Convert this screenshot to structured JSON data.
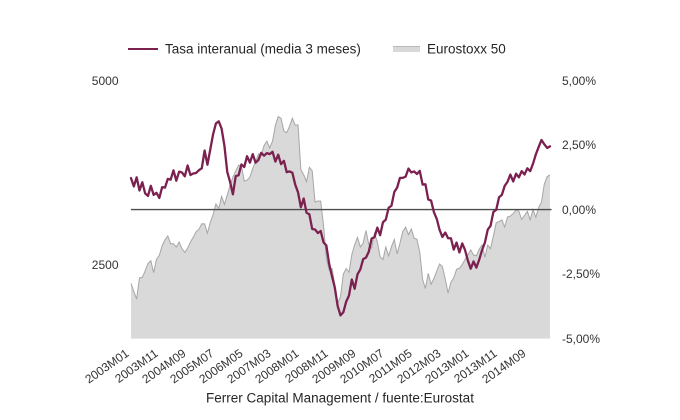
{
  "chart_data": {
    "type": "combo",
    "x": [
      "2003M01",
      "2003M02",
      "2003M03",
      "2003M04",
      "2003M05",
      "2003M06",
      "2003M07",
      "2003M08",
      "2003M09",
      "2003M10",
      "2003M11",
      "2003M12",
      "2004M01",
      "2004M02",
      "2004M03",
      "2004M04",
      "2004M05",
      "2004M06",
      "2004M07",
      "2004M08",
      "2004M09",
      "2004M10",
      "2004M11",
      "2004M12",
      "2005M01",
      "2005M02",
      "2005M03",
      "2005M04",
      "2005M05",
      "2005M06",
      "2005M07",
      "2005M08",
      "2005M09",
      "2005M10",
      "2005M11",
      "2005M12",
      "2006M01",
      "2006M02",
      "2006M03",
      "2006M04",
      "2006M05",
      "2006M06",
      "2006M07",
      "2006M08",
      "2006M09",
      "2006M10",
      "2006M11",
      "2006M12",
      "2007M01",
      "2007M02",
      "2007M03",
      "2007M04",
      "2007M05",
      "2007M06",
      "2007M07",
      "2007M08",
      "2007M09",
      "2007M10",
      "2007M11",
      "2007M12",
      "2008M01",
      "2008M02",
      "2008M03",
      "2008M04",
      "2008M05",
      "2008M06",
      "2008M07",
      "2008M08",
      "2008M09",
      "2008M10",
      "2008M11",
      "2008M12",
      "2009M01",
      "2009M02",
      "2009M03",
      "2009M04",
      "2009M05",
      "2009M06",
      "2009M07",
      "2009M08",
      "2009M09",
      "2009M10",
      "2009M11",
      "2009M12",
      "2010M01",
      "2010M02",
      "2010M03",
      "2010M04",
      "2010M05",
      "2010M06",
      "2010M07",
      "2010M08",
      "2010M09",
      "2010M10",
      "2010M11",
      "2010M12",
      "2011M01",
      "2011M02",
      "2011M03",
      "2011M04",
      "2011M05",
      "2011M06",
      "2011M07",
      "2011M08",
      "2011M09",
      "2011M10",
      "2011M11",
      "2011M12",
      "2012M01",
      "2012M02",
      "2012M03",
      "2012M04",
      "2012M05",
      "2012M06",
      "2012M07",
      "2012M08",
      "2012M09",
      "2012M10",
      "2012M11",
      "2012M12",
      "2013M01",
      "2013M02",
      "2013M03",
      "2013M04",
      "2013M05",
      "2013M06",
      "2013M07",
      "2013M08",
      "2013M09",
      "2013M10",
      "2013M11",
      "2013M12",
      "2014M01",
      "2014M02",
      "2014M03",
      "2014M04",
      "2014M05",
      "2014M06",
      "2014M07",
      "2014M08",
      "2014M09",
      "2014M10",
      "2014M11",
      "2014M12",
      "2015M01",
      "2015M02",
      "2015M03",
      "2015M04",
      "2015M05"
    ],
    "x_tick_labels": [
      "2003M01",
      "2003M11",
      "2004M09",
      "2005M07",
      "2006M05",
      "2007M03",
      "2008M01",
      "2008M11",
      "2009M09",
      "2010M07",
      "2011M05",
      "2012M03",
      "2013M01",
      "2013M11",
      "2014M09"
    ],
    "x_tick_indices": [
      0,
      10,
      20,
      30,
      40,
      50,
      60,
      70,
      80,
      90,
      100,
      110,
      120,
      130,
      140
    ],
    "series": [
      {
        "name": "Tasa interanual (media 3 meses)",
        "type": "line",
        "axis": "right",
        "color": "#7b2150",
        "values": [
          1.22,
          0.9,
          1.25,
          0.74,
          1.06,
          0.63,
          0.53,
          0.92,
          0.57,
          0.65,
          0.45,
          0.87,
          0.85,
          1.19,
          1.16,
          1.52,
          1.12,
          1.47,
          1.44,
          1.29,
          1.71,
          1.34,
          1.4,
          1.42,
          1.53,
          1.6,
          2.29,
          1.74,
          2.33,
          2.92,
          3.34,
          3.42,
          3.14,
          2.47,
          1.46,
          1.07,
          0.59,
          1.3,
          1.33,
          1.75,
          1.65,
          2.07,
          1.82,
          2.15,
          1.82,
          1.92,
          2.2,
          2.09,
          2.19,
          2.15,
          2.24,
          1.86,
          2.13,
          1.76,
          1.89,
          1.45,
          1.48,
          1.43,
          0.97,
          0.67,
          0.09,
          0.43,
          -0.12,
          -0.18,
          -0.75,
          -0.77,
          -0.91,
          -0.83,
          -1.27,
          -1.39,
          -2.11,
          -2.59,
          -3.03,
          -3.74,
          -4.1,
          -3.98,
          -3.57,
          -3.33,
          -2.71,
          -3.07,
          -2.51,
          -2.32,
          -1.92,
          -1.86,
          -1.63,
          -1.12,
          -1.07,
          -0.7,
          -0.99,
          -0.49,
          -0.39,
          0.07,
          0.15,
          0.68,
          0.85,
          1.23,
          1.23,
          1.28,
          1.59,
          1.44,
          1.48,
          1.38,
          1.5,
          0.97,
          0.98,
          0.39,
          0.35,
          -0.1,
          -0.36,
          -0.79,
          -1.06,
          -0.89,
          -1.11,
          -1.11,
          -1.55,
          -1.28,
          -1.66,
          -1.31,
          -1.57,
          -1.98,
          -2.29,
          -2.01,
          -2.25,
          -1.94,
          -1.57,
          -1.28,
          -0.78,
          -0.63,
          -0.09,
          -0.01,
          0.48,
          0.57,
          0.92,
          1.08,
          1.36,
          1.09,
          1.39,
          1.25,
          1.49,
          1.36,
          1.6,
          1.49,
          1.78,
          2.14,
          2.43,
          2.7,
          2.53,
          2.39,
          2.45
        ]
      },
      {
        "name": "Eurostoxx 50",
        "type": "area",
        "axis": "left",
        "fill": "#d9d9d9",
        "stroke": "#a6a6a6",
        "values": [
          2248,
          2140,
          2036,
          2324,
          2330,
          2420,
          2519,
          2556,
          2395,
          2575,
          2630,
          2760,
          2839,
          2893,
          2787,
          2787,
          2742,
          2811,
          2720,
          2670,
          2726,
          2811,
          2876,
          2951,
          2984,
          3058,
          3056,
          2930,
          3076,
          3182,
          3327,
          3264,
          3429,
          3320,
          3447,
          3579,
          3691,
          3774,
          3854,
          3840,
          3637,
          3649,
          3691,
          3808,
          3899,
          4005,
          3987,
          4120,
          4178,
          4087,
          4181,
          4392,
          4512,
          4489,
          4316,
          4294,
          4382,
          4489,
          4395,
          4399,
          3792,
          3724,
          3628,
          3825,
          3778,
          3353,
          3367,
          3365,
          3038,
          2591,
          2430,
          2451,
          2236,
          1976,
          2071,
          2375,
          2451,
          2401,
          2638,
          2775,
          2872,
          2743,
          2797,
          2966,
          2776,
          2728,
          2931,
          2816,
          2610,
          2573,
          2742,
          2622,
          2747,
          2844,
          2650,
          2793,
          2954,
          3013,
          2911,
          2988,
          2862,
          2848,
          2670,
          2302,
          2179,
          2385,
          2236,
          2317,
          2417,
          2512,
          2477,
          2306,
          2118,
          2264,
          2325,
          2440,
          2454,
          2504,
          2575,
          2636,
          2703,
          2633,
          2624,
          2712,
          2770,
          2602,
          2768,
          2721,
          2893,
          3068,
          3087,
          3109,
          3014,
          3149,
          3162,
          3198,
          3245,
          3228,
          3115,
          3172,
          3225,
          3113,
          3250,
          3146,
          3280,
          3351,
          3599,
          3697,
          3720
        ]
      }
    ],
    "left_axis": {
      "min": 1500,
      "max": 5000,
      "ticks": [
        2500,
        5000
      ],
      "tick_labels": [
        "2500",
        "5000"
      ]
    },
    "right_axis": {
      "min": -5,
      "max": 5,
      "ticks": [
        -5,
        -2.5,
        0,
        2.5,
        5
      ],
      "tick_labels": [
        "-5,00%",
        "-2,50%",
        "0,00%",
        "2,50%",
        "5,00%"
      ]
    },
    "zero_line": 0,
    "grid": false,
    "legend_position": "top"
  },
  "legend": {
    "line_label": "Tasa interanual (media 3 meses)",
    "area_label": "Eurostoxx 50"
  },
  "footer": {
    "text": "Ferrer Capital Management / fuente:Eurostat"
  },
  "colors": {
    "line": "#7b2150",
    "area_fill": "#d9d9d9",
    "area_stroke": "#a6a6a6",
    "zero_line": "#4d4d4d",
    "text": "#333333",
    "background": "#ffffff"
  }
}
